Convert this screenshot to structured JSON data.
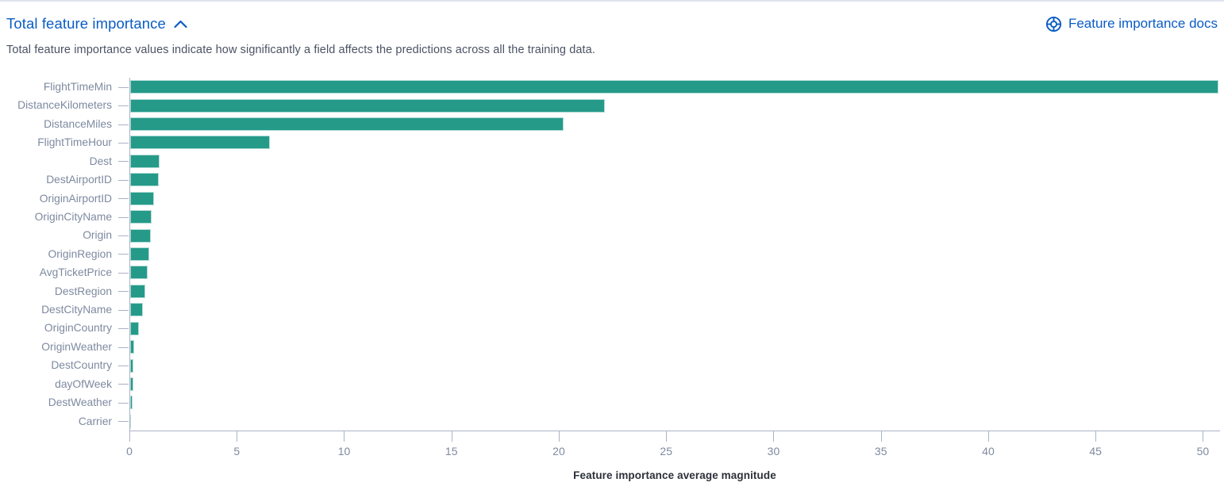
{
  "header": {
    "title": "Total feature importance",
    "collapse_icon": "chevron-up-icon",
    "docs_link_label": "Feature importance docs",
    "docs_icon": "life-ring-icon",
    "link_color": "#0a5cc5"
  },
  "description": "Total feature importance values indicate how significantly a field affects the predictions across all the training data.",
  "chart_data": {
    "type": "bar",
    "orientation": "horizontal",
    "title": "",
    "xlabel": "Feature importance average magnitude",
    "ylabel": "",
    "categories": [
      "FlightTimeMin",
      "DistanceKilometers",
      "DistanceMiles",
      "FlightTimeHour",
      "Dest",
      "DestAirportID",
      "OriginAirportID",
      "OriginCityName",
      "Origin",
      "OriginRegion",
      "AvgTicketPrice",
      "DestRegion",
      "DestCityName",
      "OriginCountry",
      "OriginWeather",
      "DestCountry",
      "dayOfWeek",
      "DestWeather",
      "Carrier"
    ],
    "values": [
      50.7,
      22.1,
      20.2,
      6.5,
      1.37,
      1.33,
      1.1,
      1.0,
      0.97,
      0.88,
      0.82,
      0.72,
      0.6,
      0.42,
      0.17,
      0.15,
      0.13,
      0.1,
      0.04
    ],
    "x_ticks": [
      0,
      5,
      10,
      15,
      20,
      25,
      30,
      35,
      40,
      45,
      50
    ],
    "xlim": [
      0,
      50.76
    ],
    "grid": false,
    "legend": "none",
    "bar_color": "#259a89",
    "axis_color": "#aab3c6",
    "tick_label_color": "#7e8aa0"
  }
}
